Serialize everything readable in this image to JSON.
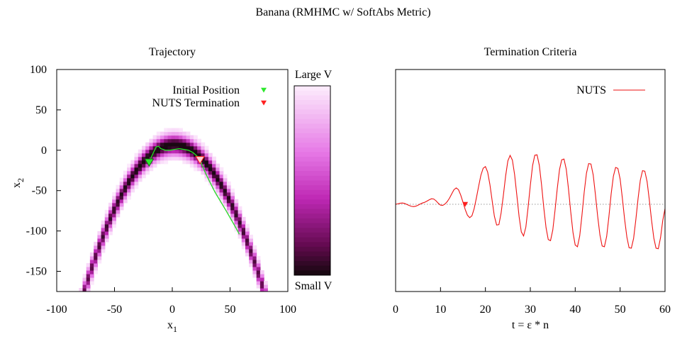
{
  "figure_title": "Banana (RMHMC w/ SoftAbs Metric)",
  "colors": {
    "initial_marker": "#2ee82e",
    "nuts_marker": "#ff2020",
    "trajectory_line": "#22dd22",
    "nuts_line": "#ee1111",
    "zero_line": "#9a9a9a",
    "colorbar_top": "#fbe9fb",
    "colorbar_mid": "#cc33cc",
    "colorbar_bottom": "#1a0812"
  },
  "chart_data": [
    {
      "type": "heatmap",
      "title": "Trajectory",
      "xlabel": "x",
      "xlabel_sub": "1",
      "ylabel": "x",
      "ylabel_sub": "2",
      "xlim": [
        -100,
        100
      ],
      "ylim": [
        -175,
        100
      ],
      "x_ticks": [
        -100,
        -50,
        0,
        50,
        100
      ],
      "y_ticks": [
        100,
        50,
        0,
        -50,
        -100,
        -150
      ],
      "density": "banana: x2 ≈ 5 − 0.03·x1², band width ~10",
      "colorbar": {
        "top_label": "Large V",
        "bottom_label": "Small V"
      },
      "legend": [
        {
          "label": "Initial Position",
          "marker": "down-triangle",
          "color": "#2ee82e"
        },
        {
          "label": "NUTS Termination",
          "marker": "down-triangle",
          "color": "#ff2020"
        }
      ],
      "initial_position": {
        "x": -20,
        "y": -15
      },
      "nuts_termination": {
        "x": 24,
        "y": -12
      },
      "trajectory": [
        [
          -20,
          -15
        ],
        [
          -18,
          -8
        ],
        [
          -16,
          -2
        ],
        [
          -14,
          4
        ],
        [
          -12,
          5
        ],
        [
          -10,
          2
        ],
        [
          -6,
          0
        ],
        [
          -2,
          0
        ],
        [
          2,
          1
        ],
        [
          6,
          2
        ],
        [
          10,
          1
        ],
        [
          14,
          0
        ],
        [
          18,
          -3
        ],
        [
          22,
          -8
        ],
        [
          25,
          -16
        ],
        [
          28,
          -26
        ],
        [
          32,
          -38
        ],
        [
          37,
          -52
        ],
        [
          42,
          -64
        ],
        [
          47,
          -76
        ],
        [
          51,
          -86
        ],
        [
          55,
          -96
        ],
        [
          58,
          -104
        ]
      ],
      "grid": false,
      "legend_position": "top-right"
    },
    {
      "type": "line",
      "title": "Termination Criteria",
      "xlabel": "t = ε * n",
      "ylabel": "",
      "xlim": [
        0,
        60
      ],
      "x_ticks": [
        0,
        10,
        20,
        30,
        40,
        50,
        60
      ],
      "series": [
        {
          "name": "NUTS",
          "x": [
            0,
            0.5,
            1,
            1.5,
            2,
            2.5,
            3,
            3.5,
            4,
            4.5,
            5,
            5.5,
            6,
            6.5,
            7,
            7.5,
            8,
            8.5,
            9,
            9.5,
            10,
            10.5,
            11,
            11.5,
            12,
            12.5,
            13,
            13.5,
            14,
            14.5,
            15,
            15.5,
            16,
            16.5,
            17,
            17.5,
            18,
            18.5,
            19,
            19.5,
            20,
            20.5,
            21,
            21.5,
            22,
            22.5,
            23,
            23.5,
            24,
            24.5,
            25,
            25.5,
            26,
            26.5,
            27,
            27.5,
            28,
            28.5,
            29,
            29.5,
            30,
            30.5,
            31,
            31.5,
            32,
            32.5,
            33,
            33.5,
            34,
            34.5,
            35,
            35.5,
            36,
            36.5,
            37,
            37.5,
            38,
            38.5,
            39,
            39.5,
            40,
            40.5,
            41,
            41.5,
            42,
            42.5,
            43,
            43.5,
            44,
            44.5,
            45,
            45.5,
            46,
            46.5,
            47,
            47.5,
            48,
            48.5,
            49,
            49.5,
            50,
            50.5,
            51,
            51.5,
            52,
            52.5,
            53,
            53.5,
            54,
            54.5,
            55,
            55.5,
            56,
            56.5,
            57,
            57.5,
            58,
            58.5,
            59,
            59.5,
            60
          ],
          "y": [
            0,
            0.3,
            0.7,
            0.9,
            0.6,
            -0.1,
            -0.8,
            -1.4,
            -1.6,
            -1.3,
            -0.6,
            0.2,
            0.9,
            1.4,
            2.2,
            3.1,
            3.8,
            3.6,
            2.4,
            0.7,
            -0.6,
            -0.8,
            0.2,
            1.8,
            4.2,
            7.2,
            10.0,
            11.2,
            10.0,
            6.4,
            1.5,
            -3.6,
            -7.5,
            -9.2,
            -7.9,
            -3.0,
            4.5,
            12.6,
            20.0,
            24.8,
            25.9,
            22.2,
            13.6,
            2.4,
            -8.2,
            -14.3,
            -14.0,
            -6.0,
            6.2,
            19.5,
            29.8,
            33.6,
            30.4,
            20.6,
            6.2,
            -8.6,
            -19.0,
            -21.8,
            -15.7,
            -2.4,
            13.0,
            26.6,
            33.7,
            34.0,
            26.8,
            13.6,
            -2.4,
            -16.1,
            -24.3,
            -25.0,
            -17.7,
            -4.4,
            10.8,
            23.9,
            30.6,
            31.1,
            24.1,
            10.8,
            -5.2,
            -19.4,
            -28.0,
            -29.2,
            -21.7,
            -7.7,
            8.3,
            21.4,
            28.0,
            27.7,
            20.2,
            6.8,
            -8.3,
            -21.1,
            -28.7,
            -29.2,
            -22.1,
            -8.7,
            7.0,
            19.4,
            25.3,
            24.7,
            17.3,
            4.3,
            -10.3,
            -22.6,
            -29.9,
            -30.2,
            -23.4,
            -10.8,
            4.0,
            16.7,
            23.1,
            22.8,
            15.6,
            3.2,
            -11.0,
            -23.2,
            -30.2,
            -30.6,
            -22.9,
            -11.1,
            -3.0
          ]
        }
      ],
      "zero_line": true,
      "termination_marker": {
        "x": 15.5,
        "y": 0
      },
      "grid": false,
      "legend_position": "top-right"
    }
  ]
}
